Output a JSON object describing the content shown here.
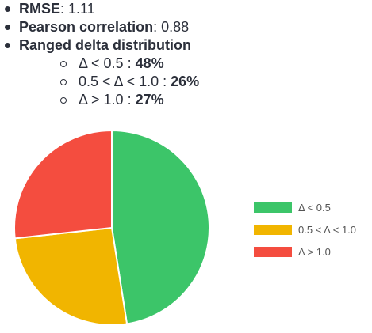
{
  "stats": {
    "rmse_label": "RMSE",
    "rmse_value": "1.11",
    "pearson_label": "Pearson correlation",
    "pearson_value": "0.88",
    "dist_label": "Ranged delta distribution",
    "ranges": [
      {
        "label": "Δ < 0.5 : ",
        "value": "48%"
      },
      {
        "label": "0.5 < Δ < 1.0 : ",
        "value": "26%"
      },
      {
        "label": "Δ > 1.0 : ",
        "value": "27%"
      }
    ]
  },
  "chart_data": {
    "type": "pie",
    "title": "",
    "categories": [
      "Δ < 0.5",
      "0.5 < Δ < 1.0",
      "Δ > 1.0"
    ],
    "values": [
      48,
      26,
      27
    ],
    "colors": [
      "#3cc569",
      "#f1b500",
      "#f44d3f"
    ],
    "legend_placement": "right"
  }
}
